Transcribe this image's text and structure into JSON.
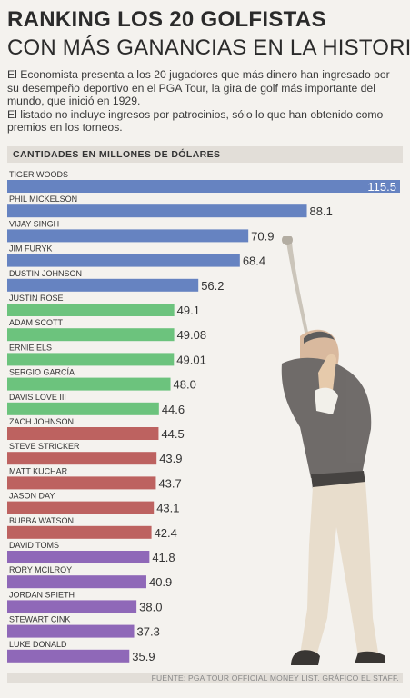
{
  "header": {
    "title_line1": "RANKING LOS 20 GOLFISTAS",
    "title_line2": "CON MÁS GANANCIAS EN LA HISTORIA"
  },
  "intro": {
    "paragraph1": "El Economista presenta a los 20 jugadores que más dinero han ingresado por su desempeño deportivo en el PGA Tour, la gira de golf más importante del mundo, que inició en 1929.",
    "paragraph2": "El listado no incluye ingresos por patrocinios, sólo lo que han obtenido como premios en los torneos."
  },
  "units_label": "CANTIDADES EN MILLONES DE DÓLARES",
  "source": "FUENTE: PGA TOUR OFFICIAL MONEY LIST. GRÁFICO EL STAFF.",
  "colors": {
    "blue": "#6683c1",
    "green": "#6cc37d",
    "red": "#bd6260",
    "purple": "#8f68b8"
  },
  "chart_data": {
    "type": "bar",
    "orientation": "horizontal",
    "title": "",
    "xlabel": "",
    "ylabel": "",
    "xlim": [
      0,
      115.5
    ],
    "categories": [
      "TIGER WOODS",
      "PHIL MICKELSON",
      "VIJAY SINGH",
      "JIM FURYK",
      "DUSTIN JOHNSON",
      "JUSTIN ROSE",
      "ADAM SCOTT",
      "ERNIE ELS",
      "SERGIO GARCÍA",
      "DAVIS LOVE III",
      "ZACH JOHNSON",
      "STEVE STRICKER",
      "MATT KUCHAR",
      "JASON DAY",
      "BUBBA WATSON",
      "DAVID TOMS",
      "RORY MCILROY",
      "JORDAN SPIETH",
      "STEWART CINK",
      "LUKE DONALD"
    ],
    "values": [
      115.5,
      88.1,
      70.9,
      68.4,
      56.2,
      49.1,
      49.08,
      49.01,
      48.0,
      44.6,
      44.5,
      43.9,
      43.7,
      43.1,
      42.4,
      41.8,
      40.9,
      38.0,
      37.3,
      35.9
    ],
    "value_labels": [
      "115.5",
      "88.1",
      "70.9",
      "68.4",
      "56.2",
      "49.1",
      "49.08",
      "49.01",
      "48.0",
      "44.6",
      "44.5",
      "43.9",
      "43.7",
      "43.1",
      "42.4",
      "41.8",
      "40.9",
      "38.0",
      "37.3",
      "35.9"
    ],
    "bar_colors": [
      "blue",
      "blue",
      "blue",
      "blue",
      "blue",
      "green",
      "green",
      "green",
      "green",
      "green",
      "red",
      "red",
      "red",
      "red",
      "red",
      "purple",
      "purple",
      "purple",
      "purple",
      "purple"
    ]
  }
}
